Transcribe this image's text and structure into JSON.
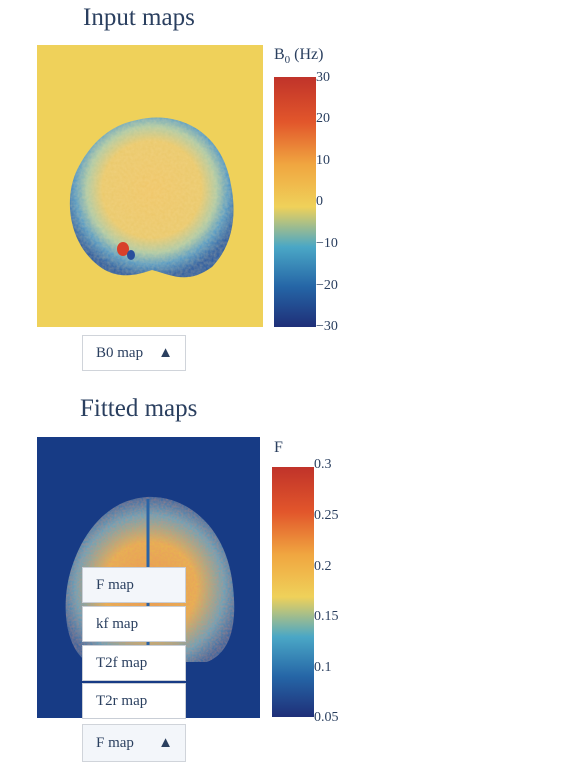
{
  "input_section": {
    "title": "Input maps",
    "colorbar": {
      "title_base": "B",
      "title_sub": "0",
      "title_unit": " (Hz)",
      "ticks": [
        "30",
        "20",
        "10",
        "0",
        "−10",
        "−20",
        "−30"
      ]
    },
    "dropdown": {
      "label": "B0 map",
      "arrow": "▲"
    }
  },
  "fitted_section": {
    "title": "Fitted maps",
    "colorbar": {
      "title": "F",
      "ticks": [
        "0.3",
        "0.25",
        "0.2",
        "0.15",
        "0.1",
        "0.05"
      ]
    },
    "menu_items": [
      "F map",
      "kf map",
      "T2f map",
      "T2r map"
    ],
    "selected_item": "F map",
    "dropdown": {
      "label": "F map",
      "arrow": "▲"
    }
  },
  "colors": {
    "text": "#2a3f5f",
    "background_b0": "#efd15a",
    "background_fitted": "#173b85",
    "colormap": [
      "#1f2f78",
      "#2565a6",
      "#4aa7c6",
      "#efd15a",
      "#f0a640",
      "#e2562b",
      "#c0332a"
    ]
  }
}
